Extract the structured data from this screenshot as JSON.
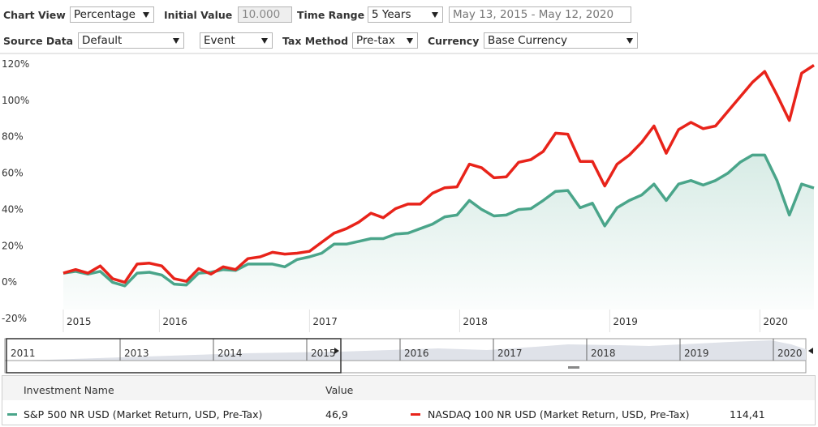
{
  "controls": {
    "chart_view_label": "Chart View",
    "chart_view": "Percentage",
    "initial_value_label": "Initial Value",
    "initial_value": "10.000",
    "time_range_label": "Time Range",
    "time_range": "5 Years",
    "date_range": "May 13, 2015 - May 12, 2020",
    "source_data_label": "Source Data",
    "source_data": "Default",
    "event": "Event",
    "tax_method_label": "Tax Method",
    "tax_method": "Pre-tax",
    "currency_label": "Currency",
    "currency": "Base Currency"
  },
  "chart_data": {
    "type": "line",
    "xlim": [
      2015.36,
      2020.36
    ],
    "xticks": [
      {
        "value": 2015.36,
        "label": "2015"
      },
      2016,
      2017,
      2018,
      2019,
      2020
    ],
    "ylim": [
      -20,
      120
    ],
    "yticks": [
      {
        "value": 120,
        "label": "120%"
      },
      {
        "value": 100,
        "label": "100%"
      },
      {
        "value": 80,
        "label": "80%"
      },
      {
        "value": 60,
        "label": "60%"
      },
      {
        "value": 40,
        "label": "40%"
      },
      {
        "value": 20,
        "label": "20%"
      },
      {
        "value": 0,
        "label": "0%"
      },
      {
        "value": -20,
        "label": "-20%"
      }
    ],
    "grid": true,
    "series": [
      {
        "name": "S&P 500 NR USD (Market Return, USD, Pre-Tax)",
        "color": "#4aa58a",
        "area": true,
        "values": [
          0,
          1,
          -0.5,
          1,
          -5,
          -7,
          0,
          0.5,
          -1,
          -6,
          -6.5,
          0,
          0.5,
          2,
          1.5,
          5,
          5,
          5,
          3.5,
          7.5,
          9,
          11,
          16,
          16,
          17.5,
          19,
          19,
          21.5,
          22,
          24.5,
          27,
          31,
          32,
          40,
          35,
          31.5,
          32,
          35,
          35.5,
          40,
          45,
          45.5,
          36,
          38.5,
          26,
          36,
          40,
          43,
          49,
          40,
          49,
          51,
          48.5,
          51,
          55,
          61,
          65,
          65,
          51,
          32,
          49,
          46.9
        ]
      },
      {
        "name": "NASDAQ 100 NR USD (Market Return, USD, Pre-Tax)",
        "color": "#e8231a",
        "area": false,
        "values": [
          0,
          2,
          0,
          4,
          -3,
          -5,
          5,
          5.5,
          4,
          -3,
          -4.5,
          2.5,
          -0.5,
          3.5,
          2,
          8,
          9,
          11.5,
          10.5,
          11,
          12,
          17,
          22,
          24.5,
          28,
          33,
          30.5,
          35.5,
          38,
          38,
          44,
          47,
          47.5,
          60,
          58,
          52.5,
          53,
          61,
          62.5,
          67,
          77,
          76.5,
          61.5,
          61.5,
          48,
          60,
          65,
          72,
          81,
          66,
          79,
          83,
          79.5,
          81,
          89,
          97,
          105,
          111,
          98,
          84,
          110,
          114.41
        ]
      }
    ]
  },
  "navigator": {
    "labels": [
      "2011",
      "2013",
      "2014",
      "2015",
      "2016",
      "2017",
      "2018",
      "2019",
      "2020"
    ]
  },
  "table": {
    "headers": [
      "Investment Name",
      "Value"
    ],
    "values": [
      "46,9",
      "114,41"
    ]
  }
}
